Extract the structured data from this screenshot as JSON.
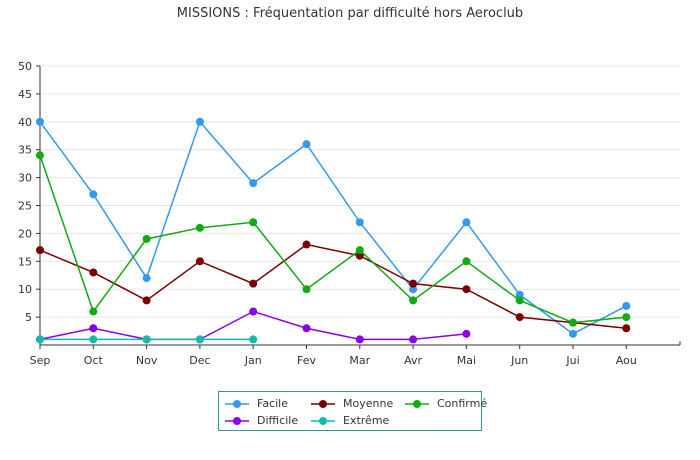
{
  "chart_data": {
    "type": "line",
    "title": "MISSIONS : Fréquentation par difficulté hors Aeroclub",
    "xlabel": "",
    "ylabel": "",
    "categories": [
      "Sep",
      "Oct",
      "Nov",
      "Dec",
      "Jan",
      "Fev",
      "Mar",
      "Avr",
      "Mai",
      "Jun",
      "Jui",
      "Aou"
    ],
    "ylim": [
      0,
      50
    ],
    "yticks": [
      5,
      10,
      15,
      20,
      25,
      30,
      35,
      40,
      45,
      50
    ],
    "grid": true,
    "legend_position": "bottom",
    "series": [
      {
        "name": "Facile",
        "color": "#3399ee",
        "values": [
          40,
          27,
          12,
          40,
          29,
          36,
          22,
          10,
          22,
          9,
          2,
          7
        ]
      },
      {
        "name": "Moyenne",
        "color": "#7a0000",
        "values": [
          17,
          13,
          8,
          15,
          11,
          18,
          16,
          11,
          10,
          5,
          4,
          3
        ]
      },
      {
        "name": "Confirmé",
        "color": "#11aa11",
        "values": [
          34,
          6,
          19,
          21,
          22,
          10,
          17,
          8,
          15,
          8,
          4,
          5
        ]
      },
      {
        "name": "Difficile",
        "color": "#8800ee",
        "values": [
          1,
          3,
          1,
          1,
          6,
          3,
          1,
          1,
          2,
          null,
          null,
          null
        ]
      },
      {
        "name": "Extrême",
        "color": "#11bbaa",
        "values": [
          1,
          1,
          1,
          1,
          1,
          null,
          null,
          null,
          null,
          null,
          null,
          null
        ]
      }
    ]
  }
}
